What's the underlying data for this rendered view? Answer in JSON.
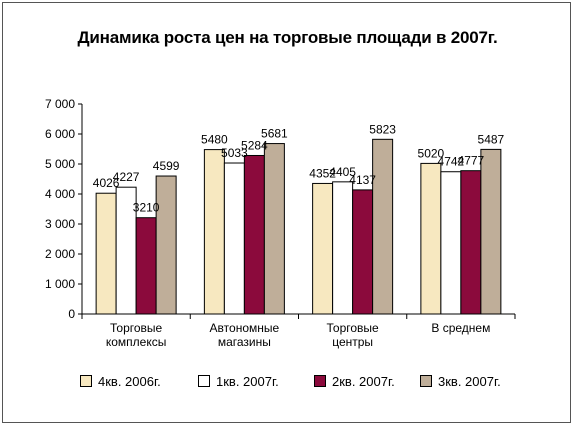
{
  "chart_data": {
    "type": "bar",
    "title": "Динамика роста цен на торговые площади в 2007г.",
    "categories": [
      [
        "Торговые",
        "комплексы"
      ],
      [
        "Автономные",
        "магазины"
      ],
      [
        "Торговые",
        "центры"
      ],
      [
        "В среднем"
      ]
    ],
    "series": [
      {
        "name": "4кв. 2006г.",
        "color": "#f7e8c0",
        "values": [
          4026,
          5480,
          4352,
          5020
        ]
      },
      {
        "name": "1кв. 2007г.",
        "color": "#ffffff",
        "values": [
          4227,
          5033,
          4405,
          4742
        ]
      },
      {
        "name": "2кв. 2007г.",
        "color": "#8b0a3c",
        "values": [
          3210,
          5284,
          4137,
          4777
        ]
      },
      {
        "name": "3кв. 2007г.",
        "color": "#bfae99",
        "values": [
          4599,
          5681,
          5823,
          5487
        ]
      }
    ],
    "yticks": [
      "0",
      "1 000",
      "2 000",
      "3 000",
      "4 000",
      "5 000",
      "6 000",
      "7 000"
    ],
    "ylim": [
      0,
      7000
    ],
    "legend_position": "bottom"
  }
}
